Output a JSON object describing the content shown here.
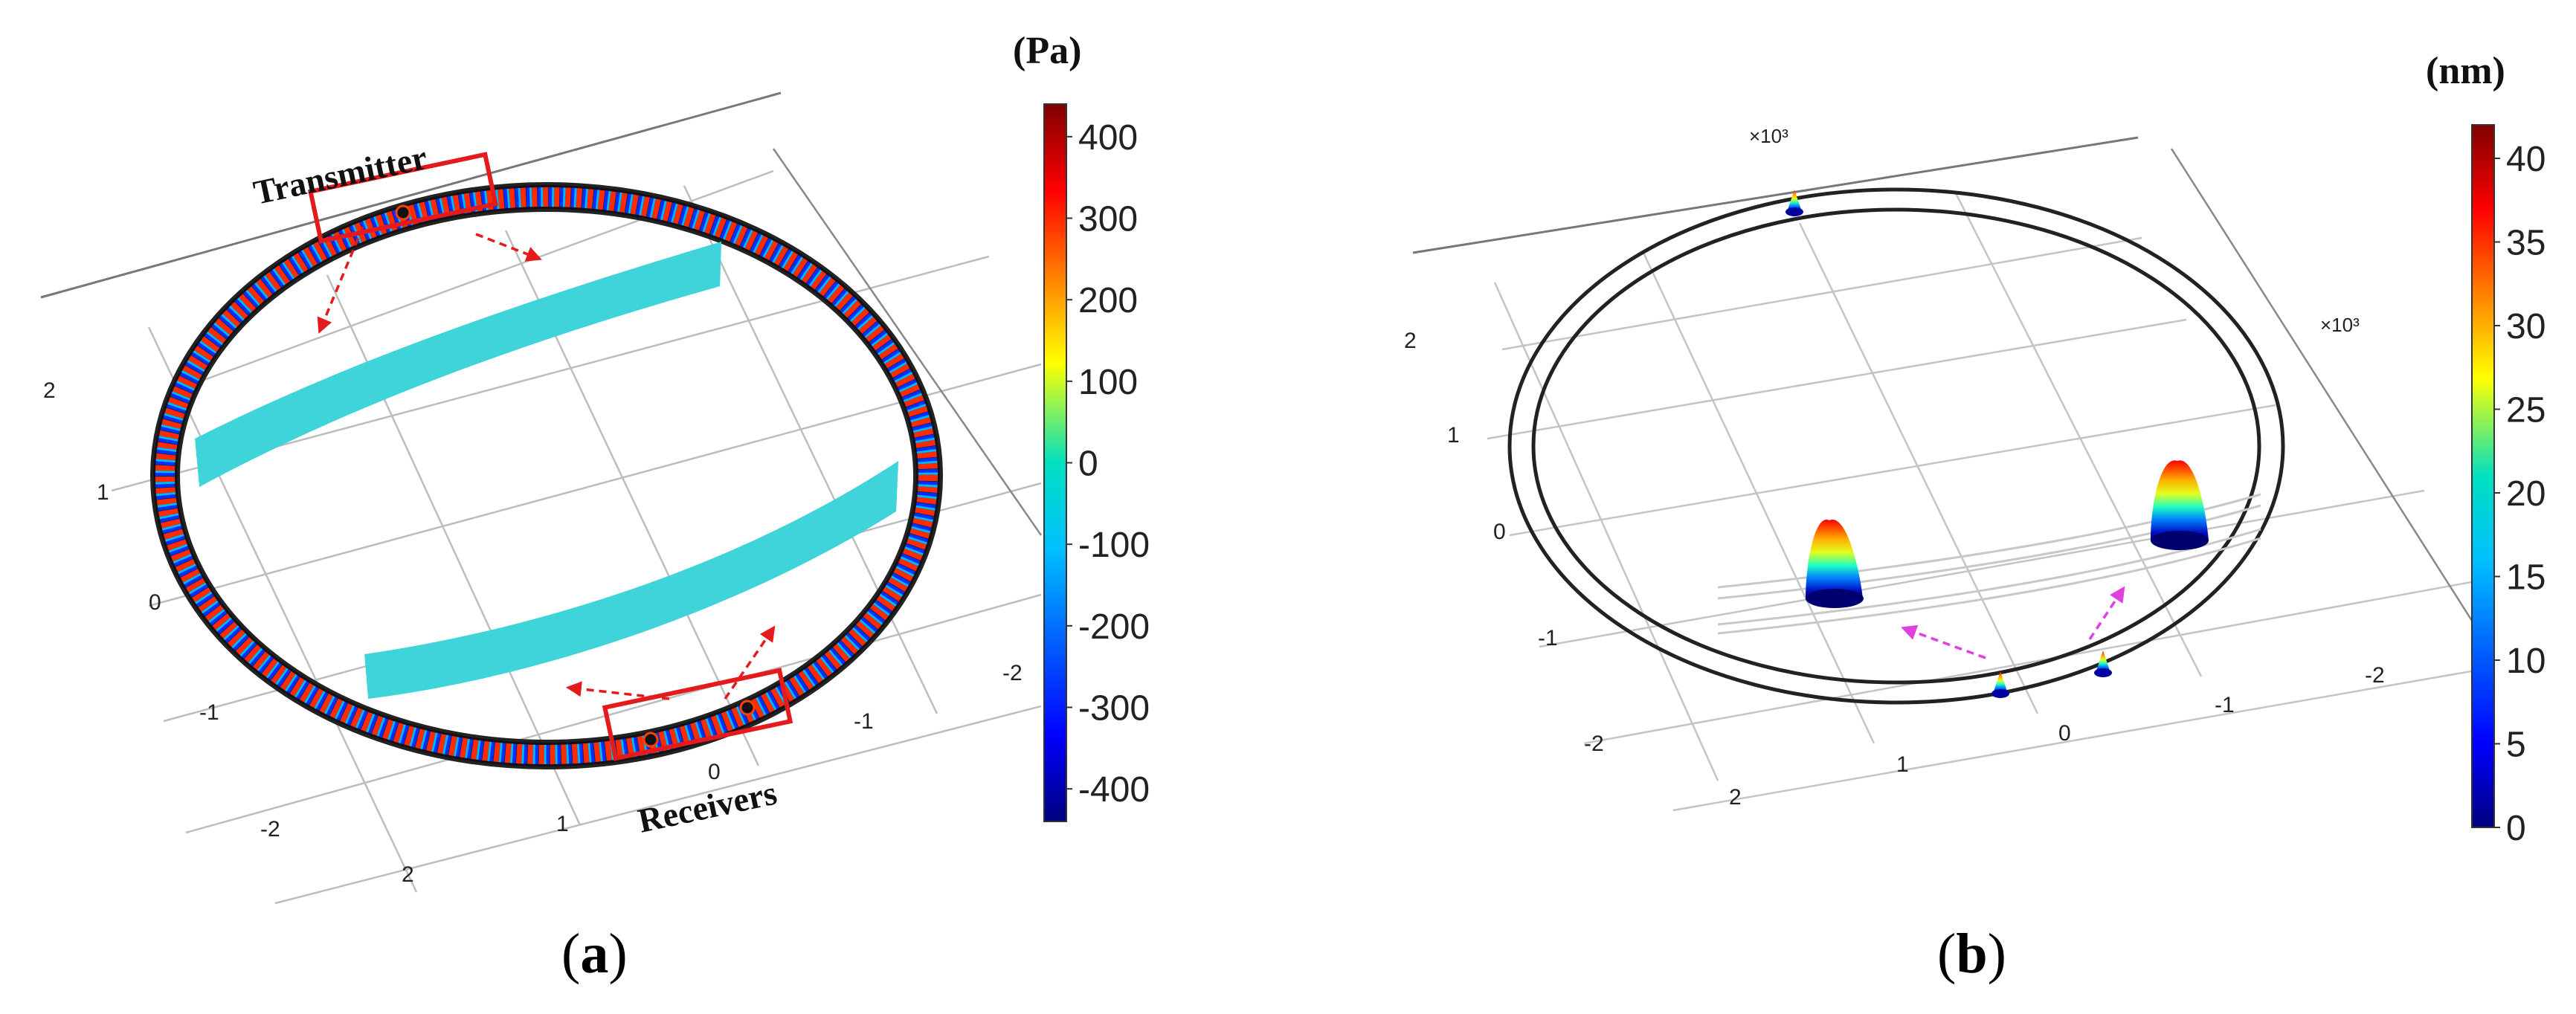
{
  "panel_a": {
    "unit": "(Pa)",
    "label_transmitter": "Transmitter",
    "label_receivers": "Receivers",
    "caption_open": "(",
    "caption_letter": "a",
    "caption_close": ")",
    "colorbar_ticks": [
      "400",
      "300",
      "200",
      "100",
      "0",
      "-100",
      "-200",
      "-300",
      "-400"
    ],
    "colorbar_range": [
      -440,
      440
    ],
    "axis_ticks_left": [
      "2",
      "1",
      "0",
      "-1",
      "-2"
    ],
    "axis_ticks_bottom": [
      "0",
      "1",
      "2"
    ],
    "axis_ticks_right": [
      "-1",
      "-2"
    ]
  },
  "panel_b": {
    "unit": "(nm)",
    "caption_open": "(",
    "caption_letter": "b",
    "caption_close": ")",
    "scale_top": "×10³",
    "scale_right": "×10³",
    "colorbar_ticks": [
      "40",
      "35",
      "30",
      "25",
      "20",
      "15",
      "10",
      "5",
      "0"
    ],
    "colorbar_range": [
      0,
      42
    ],
    "axis_ticks_left": [
      "2",
      "1",
      "0",
      "-1",
      "-2"
    ],
    "axis_ticks_bottom": [
      "1",
      "0",
      "-1"
    ],
    "axis_ticks_extra": [
      "2"
    ],
    "axis_ticks_right": [
      "-2"
    ]
  },
  "colors": {
    "annotation_red": "#e41a1c",
    "annotation_magenta": "#e040e0",
    "ring": "#222222",
    "grid": "#bdbdbd"
  }
}
